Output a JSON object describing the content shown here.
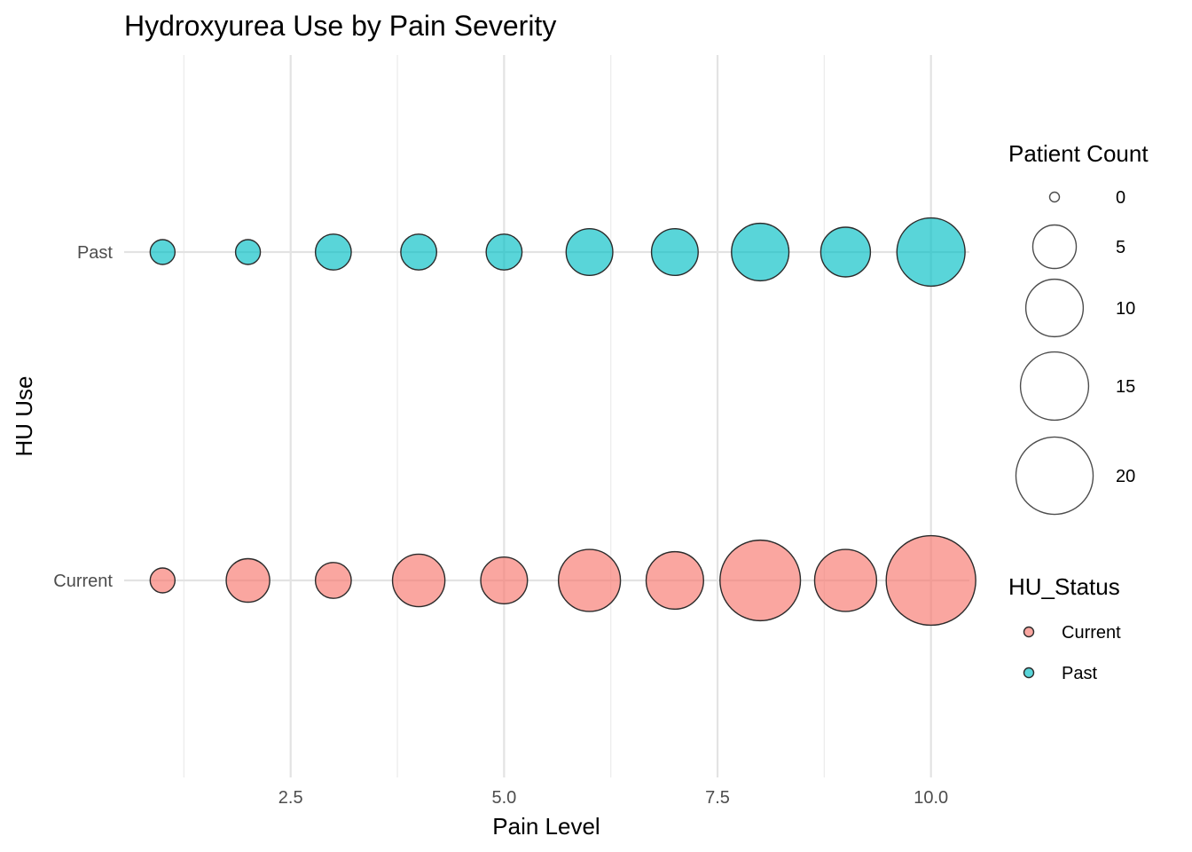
{
  "chart_data": {
    "type": "scatter",
    "title": "Hydroxyurea Use by Pain Severity",
    "xlabel": "Pain Level",
    "ylabel": "HU Use",
    "xlim": [
      0.55,
      10.45
    ],
    "x_ticks": [
      "2.5",
      "5.0",
      "7.5",
      "10.0"
    ],
    "x_tick_values": [
      2.5,
      5.0,
      7.5,
      10.0
    ],
    "x_minor_grid": [
      1.25,
      3.75,
      6.25,
      8.75
    ],
    "categories": [
      "Current",
      "Past"
    ],
    "colors": {
      "Current": "#F8766D",
      "Past": "#00BFC4"
    },
    "series": [
      {
        "name": "Past",
        "x": [
          1,
          2,
          3,
          4,
          5,
          6,
          7,
          8,
          9,
          10
        ],
        "count": [
          1,
          1,
          3,
          3,
          3,
          6,
          6,
          10,
          7,
          15
        ]
      },
      {
        "name": "Current",
        "x": [
          1,
          2,
          3,
          4,
          5,
          6,
          7,
          8,
          9,
          10
        ],
        "count": [
          1,
          5,
          3,
          8,
          6,
          12,
          10,
          22,
          12,
          28
        ]
      }
    ],
    "size_legend": {
      "title": "Patient Count",
      "values": [
        0,
        5,
        10,
        15,
        20
      ],
      "labels": [
        "0",
        "5",
        "10",
        "15",
        "20"
      ]
    },
    "color_legend": {
      "title": "HU_Status",
      "labels": [
        "Current",
        "Past"
      ]
    },
    "grid": true
  }
}
